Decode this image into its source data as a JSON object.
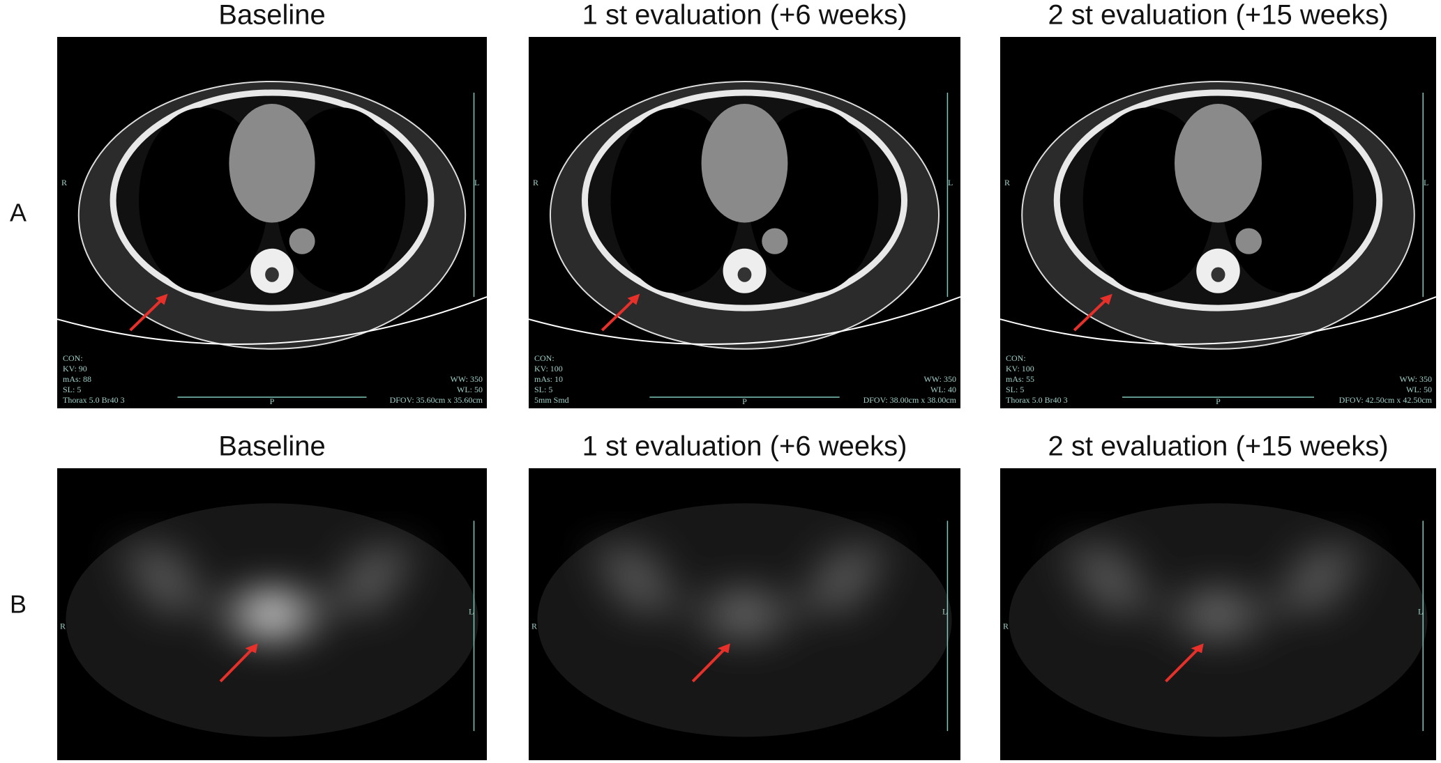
{
  "figure": {
    "rows": [
      {
        "label": "A",
        "panels": [
          {
            "title": "Baseline",
            "overlay": {
              "orientation": [
                "R",
                "L",
                "P"
              ],
              "left": [
                "CON:",
                "KV: 90",
                "mAs: 88",
                "SL: 5",
                "Thorax  5.0  Br40  3"
              ],
              "right": [
                "WW: 350",
                "WL: 50",
                "DFOV: 35.60cm x 35.60cm"
              ]
            }
          },
          {
            "title": "1 st evaluation (+6 weeks)",
            "overlay": {
              "orientation": [
                "R",
                "L",
                "P"
              ],
              "left": [
                "CON:",
                "KV: 100",
                "mAs: 10",
                "SL: 5",
                "5mm Smd"
              ],
              "right": [
                "WW: 350",
                "WL: 40",
                "DFOV: 38.00cm x 38.00cm"
              ]
            }
          },
          {
            "title": "2 st evaluation (+15 weeks)",
            "overlay": {
              "orientation": [
                "R",
                "L",
                "P"
              ],
              "left": [
                "CON:",
                "KV: 100",
                "mAs: 55",
                "SL: 5",
                "Thorax  5.0  Br40  3"
              ],
              "right": [
                "WW: 350",
                "WL: 50",
                "DFOV: 42.50cm x 42.50cm"
              ]
            }
          }
        ]
      },
      {
        "label": "B",
        "panels": [
          {
            "title": "Baseline",
            "overlay": {
              "orientation": [
                "R",
                "L"
              ]
            }
          },
          {
            "title": "1 st evaluation (+6 weeks)",
            "overlay": {
              "orientation": [
                "R",
                "L"
              ]
            }
          },
          {
            "title": "2 st evaluation (+15 weeks)",
            "overlay": {
              "orientation": [
                "R",
                "L"
              ]
            }
          }
        ]
      }
    ]
  }
}
